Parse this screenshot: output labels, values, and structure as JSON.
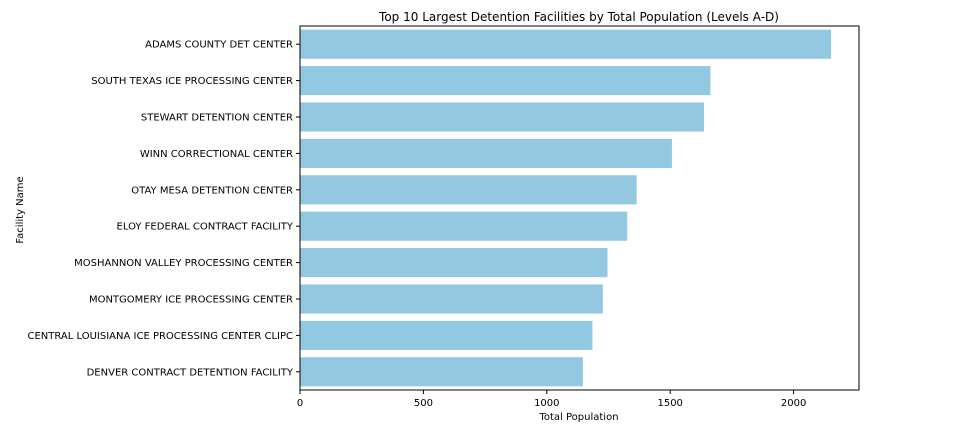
{
  "chart_data": {
    "type": "bar",
    "orientation": "horizontal",
    "title": "Top 10 Largest Detention Facilities by Total Population (Levels A-D)",
    "xlabel": "Total Population",
    "ylabel": "Facility Name",
    "categories": [
      "ADAMS COUNTY DET CENTER",
      "SOUTH TEXAS ICE PROCESSING CENTER",
      "STEWART DETENTION CENTER",
      "WINN CORRECTIONAL CENTER",
      "OTAY MESA DETENTION CENTER",
      "ELOY FEDERAL CONTRACT FACILITY",
      "MOSHANNON VALLEY PROCESSING CENTER",
      "MONTGOMERY ICE PROCESSING CENTER",
      "CENTRAL LOUISIANA ICE PROCESSING CENTER CLIPC",
      "DENVER CONTRACT DETENTION FACILITY"
    ],
    "values": [
      2152,
      1663,
      1637,
      1507,
      1364,
      1326,
      1246,
      1227,
      1185,
      1146
    ],
    "xlim": [
      0,
      2265
    ],
    "xticks": [
      0,
      500,
      1000,
      1500,
      2000
    ],
    "bar_color": "#92c9e0",
    "grid": false,
    "legend": "none"
  }
}
